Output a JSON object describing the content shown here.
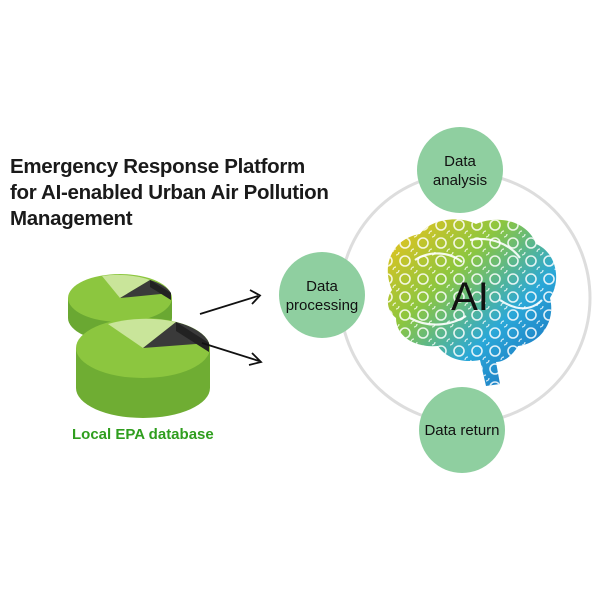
{
  "title": {
    "line1": "Emergency Response Platform",
    "line2": "for AI-enabled Urban Air Pollution",
    "line3": "Management"
  },
  "database": {
    "label": "Local EPA database"
  },
  "nodes": {
    "analysis": {
      "line1": "Data",
      "line2": "analysis"
    },
    "processing": {
      "line1": "Data",
      "line2": "processing"
    },
    "return": {
      "label": "Data return"
    }
  },
  "ai": {
    "label": "AI"
  },
  "colors": {
    "node_fill": "#8fcfa0",
    "ring_stroke": "#dddddd",
    "db_green": "#8cc63f",
    "db_dark": "#3a3a3a",
    "db_label": "#2f9e1e"
  },
  "icons": [
    "database-icon",
    "brain-icon",
    "arrow-icon"
  ]
}
